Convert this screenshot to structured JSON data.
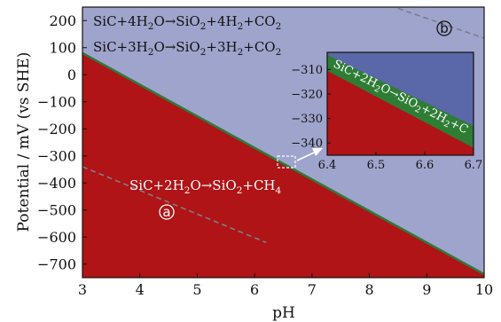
{
  "chart_data": [
    {
      "type": "area",
      "xlabel": "pH",
      "ylabel": "Potential / mV (vs SHE)",
      "xlim": [
        3,
        10
      ],
      "ylim": [
        -750,
        250
      ],
      "x_ticks": [
        3,
        4,
        5,
        6,
        7,
        8,
        9,
        10
      ],
      "y_ticks": [
        200,
        100,
        0,
        -100,
        -200,
        -300,
        -400,
        -500,
        -600,
        -700
      ],
      "x_tick_labels": [
        "3",
        "4",
        "5",
        "6",
        "7",
        "8",
        "9",
        "10"
      ],
      "y_tick_labels": [
        "200",
        "100",
        "0",
        "−100",
        "−200",
        "−300",
        "−400",
        "−500",
        "−600",
        "−700"
      ],
      "regions": [
        {
          "label": {
            "prefix": "SiC+4H",
            "s1": "2",
            "mid1": "O→SiO",
            "s2": "2",
            "mid2": "+4H",
            "s3": "2",
            "end": "+CO",
            "s4": "2"
          },
          "color": "#9fa4cc"
        },
        {
          "label": {
            "prefix": "SiC+3H",
            "s1": "2",
            "mid1": "O→SiO",
            "s2": "2",
            "mid2": "+3H",
            "s3": "2",
            "end": "+CO",
            "s4": "2"
          },
          "color": "#9fa4cc"
        },
        {
          "label": {
            "prefix": "SiC+2H",
            "s1": "2",
            "mid1": "O→SiO",
            "s2": "2",
            "mid2": "+CH",
            "s3": "4",
            "end": "",
            "s4": ""
          },
          "color": "#b01416"
        }
      ],
      "boundaries": [
        {
          "x": [
            3,
            10
          ],
          "y": [
            80,
            -737
          ],
          "color": "#2f7a3a"
        }
      ],
      "dashed_lines": [
        {
          "marker": "a",
          "x": [
            3,
            6.2
          ],
          "y": [
            -340,
            -620
          ]
        },
        {
          "marker": "b",
          "x": [
            8.5,
            10
          ],
          "y": [
            245,
            135
          ]
        }
      ]
    },
    {
      "type": "area",
      "xlim": [
        6.4,
        6.7
      ],
      "ylim": [
        -345,
        -303
      ],
      "x_ticks": [
        6.4,
        6.5,
        6.6,
        6.7
      ],
      "y_ticks": [
        -310,
        -320,
        -330,
        -340
      ],
      "x_tick_labels": [
        "6.4",
        "6.5",
        "6.6",
        "6.7"
      ],
      "y_tick_labels": [
        "−310",
        "−320",
        "−330",
        "−340"
      ],
      "lower_boundary": {
        "x": [
          6.4,
          6.7
        ],
        "y": [
          -310.5,
          -342
        ]
      },
      "upper_boundary": {
        "x": [
          6.4,
          6.7
        ],
        "y": [
          -304,
          -333
        ]
      },
      "band_label": {
        "prefix": "SiC+2H",
        "s1": "2",
        "mid1": "O→SiO",
        "s2": "2",
        "mid2": "+2H",
        "s3": "2",
        "end": "+C",
        "s4": ""
      },
      "colors": {
        "top": "#5a67a8",
        "band": "#2e7d35",
        "bottom": "#b01416"
      }
    }
  ],
  "markers": {
    "a": "a",
    "b": "b"
  },
  "colors": {
    "upper": "#9fa4cc",
    "lower": "#b01416",
    "boundary": "#2f7a3a",
    "dashed": "#7d7d88",
    "inset_top": "#5a67a8",
    "inset_band": "#2e7d35"
  }
}
